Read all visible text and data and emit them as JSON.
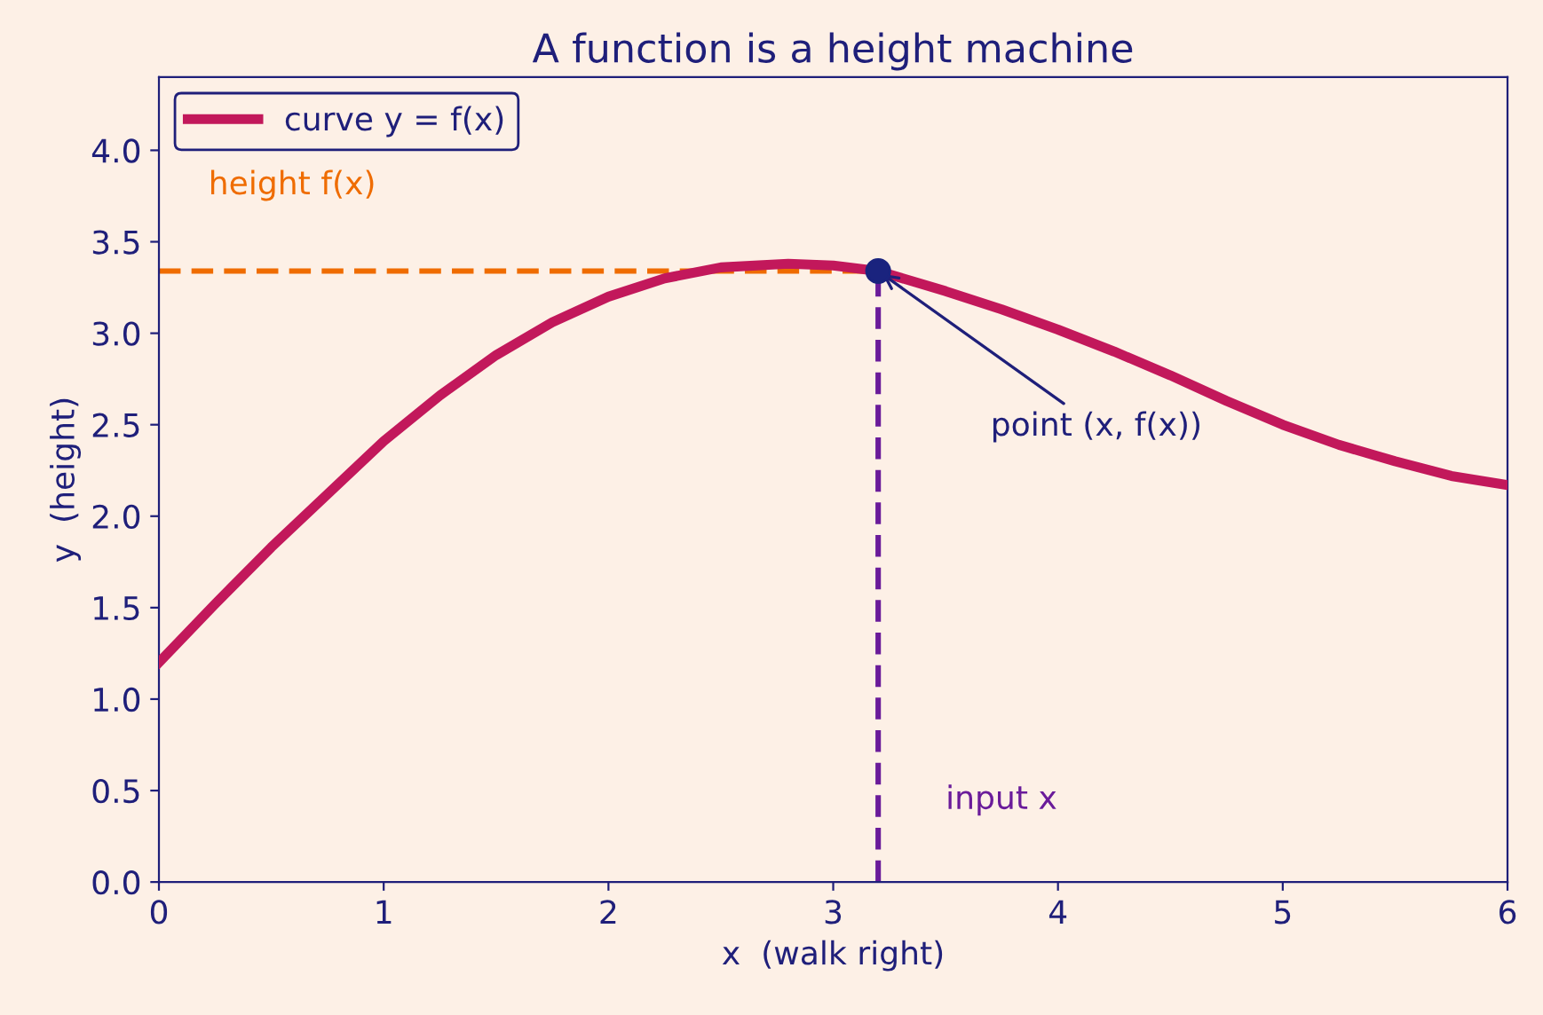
{
  "chart_data": {
    "type": "line",
    "title": "A function is a height machine",
    "xlabel": "x  (walk right)",
    "ylabel": "y  (height)",
    "series": [
      {
        "name": "curve y = f(x)",
        "color": "#c2185b",
        "line_style": "solid",
        "x": [
          0,
          0.25,
          0.5,
          0.75,
          1,
          1.25,
          1.5,
          1.75,
          2,
          2.25,
          2.5,
          2.8,
          3,
          3.2,
          3.5,
          3.75,
          4,
          4.25,
          4.5,
          4.75,
          5,
          5.25,
          5.5,
          5.75,
          6
        ],
        "values": [
          1.2,
          1.52,
          1.83,
          2.12,
          2.41,
          2.66,
          2.88,
          3.06,
          3.2,
          3.3,
          3.36,
          3.38,
          3.37,
          3.34,
          3.23,
          3.13,
          3.02,
          2.9,
          2.77,
          2.63,
          2.5,
          2.39,
          2.3,
          2.22,
          2.17
        ]
      },
      {
        "name": "height f(x)",
        "color": "#ef6c00",
        "line_style": "dashed",
        "x": [
          0,
          3.2
        ],
        "values": [
          3.34,
          3.34
        ]
      },
      {
        "name": "input x",
        "color": "#6a1b9a",
        "line_style": "dashed",
        "x": [
          3.2,
          3.2
        ],
        "values": [
          0,
          3.34
        ]
      },
      {
        "type": "scatter",
        "color": "#1a237e",
        "marker": "circle",
        "x": [
          3.2
        ],
        "values": [
          3.34
        ]
      }
    ],
    "annotations": [
      {
        "text": "point (x, f(x))",
        "x": 3.2,
        "y": 3.34
      }
    ],
    "xlim": [
      0,
      6
    ],
    "xticks": [
      0,
      1,
      2,
      3,
      4,
      5,
      6
    ],
    "ylim": [
      0,
      4.4
    ],
    "yticks": [
      {
        "value": 0,
        "label": "0.0"
      },
      {
        "value": 0.5,
        "label": "0.5"
      },
      {
        "value": 1,
        "label": "1.0"
      },
      {
        "value": 1.5,
        "label": "1.5"
      },
      {
        "value": 2,
        "label": "2.0"
      },
      {
        "value": 2.5,
        "label": "2.5"
      },
      {
        "value": 3,
        "label": "3.0"
      },
      {
        "value": 3.5,
        "label": "3.5"
      },
      {
        "value": 4,
        "label": "4.0"
      }
    ],
    "grid": false,
    "legend": "top left"
  }
}
